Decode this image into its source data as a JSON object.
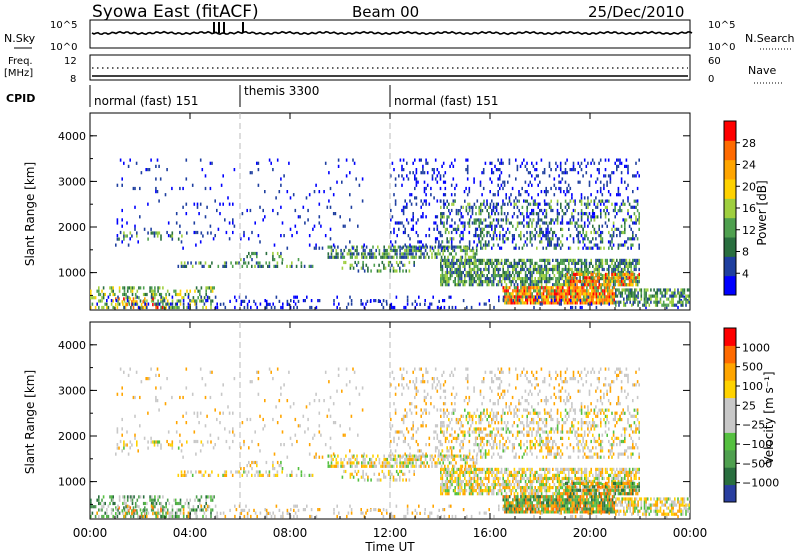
{
  "header": {
    "station": "Syowa East (fitACF)",
    "beam": "Beam 00",
    "date": "25/Dec/2010"
  },
  "top_panels": {
    "nsky_label": "N.Sky",
    "nsky_ticks": [
      "10^5",
      "10^0"
    ],
    "nsearch_label": "N.Search",
    "nsearch_ticks": [
      "10^5",
      "10^0"
    ],
    "freq_label": "Freq.",
    "freq_unit": "[MHz]",
    "freq_ticks": [
      "12",
      "8"
    ],
    "nave_label": "Nave",
    "nave_ticks": [
      "60",
      "0"
    ],
    "cpid_label": "CPID"
  },
  "cpid_segments": [
    {
      "label": "normal (fast) 151",
      "start_hour": 0,
      "end_hour": 6
    },
    {
      "label": "themis 3300",
      "start_hour": 6,
      "end_hour": 12
    },
    {
      "label": "normal (fast) 151",
      "start_hour": 12,
      "end_hour": 24
    }
  ],
  "chart_data": [
    {
      "type": "heatmap",
      "panel": "power",
      "ylabel": "Slant Range [km]",
      "xlabel": "Time UT",
      "x_ticks": [
        "00:00",
        "04:00",
        "08:00",
        "12:00",
        "16:00",
        "20:00",
        "00:00"
      ],
      "xlim_hours": [
        0,
        24
      ],
      "ylim_km": [
        180,
        4500
      ],
      "y_ticks": [
        1000,
        2000,
        3000,
        4000
      ],
      "colorbar_label": "Power [dB]",
      "colorbar_ticks": [
        "28",
        "24",
        "20",
        "16",
        "12",
        "8",
        "4"
      ],
      "colorbar_colors": [
        "#0000ff",
        "#1f3f9f",
        "#2a6f3f",
        "#4fa04f",
        "#9fcf3f",
        "#ffd200",
        "#ffa500",
        "#ff6a00",
        "#ff0000"
      ]
    },
    {
      "type": "heatmap",
      "panel": "velocity",
      "ylabel": "Slant Range [km]",
      "xlabel": "Time UT",
      "x_ticks": [
        "00:00",
        "04:00",
        "08:00",
        "12:00",
        "16:00",
        "20:00",
        "00:00"
      ],
      "xlim_hours": [
        0,
        24
      ],
      "ylim_km": [
        180,
        4500
      ],
      "y_ticks": [
        1000,
        2000,
        3000,
        4000
      ],
      "colorbar_label": "Velocity [m s⁻¹]",
      "colorbar_ticks": [
        "1000",
        "500",
        "100",
        "25",
        "−25",
        "−100",
        "−500",
        "−1000"
      ],
      "colorbar_colors": [
        "#2a3fa0",
        "#2a6f3f",
        "#4fa04f",
        "#55c040",
        "#c8c8c8",
        "#c8c8c8",
        "#ffd200",
        "#ffa500",
        "#ff6a00",
        "#ff0000"
      ]
    }
  ]
}
